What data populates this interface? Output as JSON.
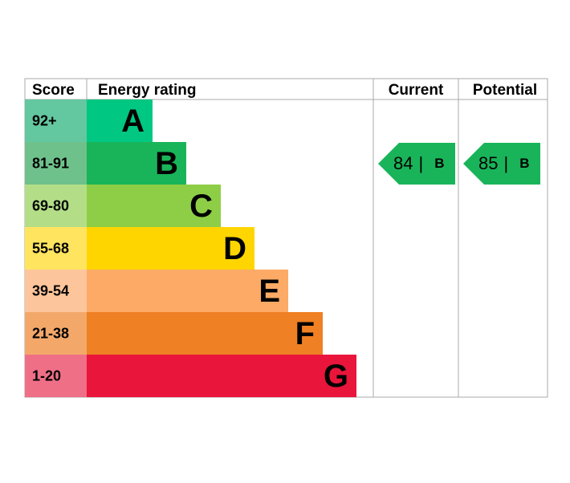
{
  "headers": {
    "score": "Score",
    "rating": "Energy rating",
    "current": "Current",
    "potential": "Potential"
  },
  "bands": [
    {
      "score": "92+",
      "letter": "A",
      "color": "#00c781",
      "score_color": "#63c7a0"
    },
    {
      "score": "81-91",
      "letter": "B",
      "color": "#19b459",
      "score_color": "#6fc18c"
    },
    {
      "score": "69-80",
      "letter": "C",
      "color": "#8dce46",
      "score_color": "#b3de87"
    },
    {
      "score": "55-68",
      "letter": "D",
      "color": "#ffd500",
      "score_color": "#ffe45f"
    },
    {
      "score": "39-54",
      "letter": "E",
      "color": "#fcaa65",
      "score_color": "#fdc59b"
    },
    {
      "score": "21-38",
      "letter": "F",
      "color": "#ef8023",
      "score_color": "#f3a86a"
    },
    {
      "score": "1-20",
      "letter": "G",
      "color": "#e9153b",
      "score_color": "#ef6f87"
    }
  ],
  "current": {
    "score": 84,
    "separator": "|",
    "rating": "B",
    "color": "#19b459"
  },
  "potential": {
    "score": 85,
    "separator": "|",
    "rating": "B",
    "color": "#19b459"
  }
}
